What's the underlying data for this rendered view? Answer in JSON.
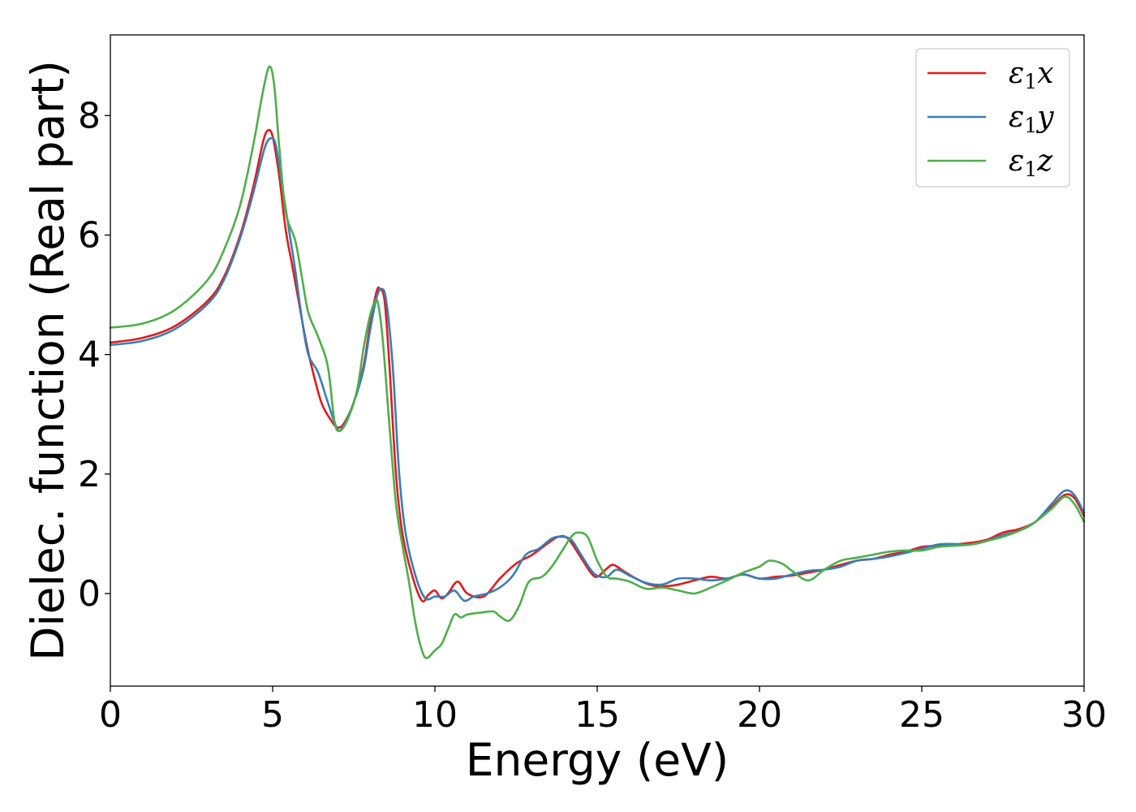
{
  "chart_data": {
    "type": "line",
    "xlabel": "Energy (eV)",
    "ylabel": "Dielec. function (Real part)",
    "xlim": [
      0,
      30
    ],
    "ylim": [
      -1.55,
      9.35
    ],
    "xticks": [
      0,
      5,
      10,
      15,
      20,
      25,
      30
    ],
    "yticks": [
      0,
      2,
      4,
      6,
      8
    ],
    "grid": false,
    "legend_position": "top-right",
    "series": [
      {
        "name": "ε1x",
        "legend_main": "ε",
        "legend_sub": "1",
        "legend_tail": "x",
        "color": "#e41a1c",
        "points": [
          [
            0,
            4.2
          ],
          [
            1,
            4.28
          ],
          [
            2,
            4.48
          ],
          [
            3,
            4.9
          ],
          [
            3.5,
            5.3
          ],
          [
            4,
            6.0
          ],
          [
            4.4,
            6.8
          ],
          [
            4.7,
            7.55
          ],
          [
            4.85,
            7.75
          ],
          [
            5.0,
            7.65
          ],
          [
            5.2,
            7.0
          ],
          [
            5.4,
            6.1
          ],
          [
            5.6,
            5.5
          ],
          [
            5.8,
            4.9
          ],
          [
            6.0,
            4.3
          ],
          [
            6.2,
            3.8
          ],
          [
            6.5,
            3.2
          ],
          [
            6.8,
            2.9
          ],
          [
            7.0,
            2.78
          ],
          [
            7.2,
            2.85
          ],
          [
            7.5,
            3.2
          ],
          [
            7.8,
            3.8
          ],
          [
            8.0,
            4.5
          ],
          [
            8.2,
            5.05
          ],
          [
            8.3,
            5.1
          ],
          [
            8.45,
            4.9
          ],
          [
            8.6,
            3.8
          ],
          [
            8.8,
            2.0
          ],
          [
            9.0,
            1.0
          ],
          [
            9.3,
            0.3
          ],
          [
            9.6,
            -0.12
          ],
          [
            9.8,
            -0.02
          ],
          [
            10.0,
            0.05
          ],
          [
            10.2,
            -0.08
          ],
          [
            10.4,
            0.0
          ],
          [
            10.7,
            0.2
          ],
          [
            11.0,
            0.0
          ],
          [
            11.5,
            -0.05
          ],
          [
            12.0,
            0.25
          ],
          [
            12.5,
            0.5
          ],
          [
            13.0,
            0.65
          ],
          [
            13.5,
            0.85
          ],
          [
            13.8,
            0.95
          ],
          [
            14.1,
            0.92
          ],
          [
            14.5,
            0.6
          ],
          [
            14.8,
            0.35
          ],
          [
            15.0,
            0.28
          ],
          [
            15.3,
            0.42
          ],
          [
            15.5,
            0.48
          ],
          [
            15.8,
            0.38
          ],
          [
            16.2,
            0.25
          ],
          [
            16.6,
            0.15
          ],
          [
            17.0,
            0.12
          ],
          [
            17.5,
            0.15
          ],
          [
            18.0,
            0.22
          ],
          [
            18.5,
            0.28
          ],
          [
            19.0,
            0.25
          ],
          [
            19.5,
            0.32
          ],
          [
            20.0,
            0.25
          ],
          [
            20.5,
            0.28
          ],
          [
            21.0,
            0.3
          ],
          [
            21.5,
            0.35
          ],
          [
            22.0,
            0.4
          ],
          [
            22.5,
            0.48
          ],
          [
            23.0,
            0.55
          ],
          [
            23.5,
            0.58
          ],
          [
            24.0,
            0.65
          ],
          [
            24.5,
            0.7
          ],
          [
            25.0,
            0.78
          ],
          [
            25.5,
            0.8
          ],
          [
            26.0,
            0.82
          ],
          [
            26.5,
            0.85
          ],
          [
            27.0,
            0.9
          ],
          [
            27.5,
            1.02
          ],
          [
            28.0,
            1.08
          ],
          [
            28.5,
            1.2
          ],
          [
            29.0,
            1.45
          ],
          [
            29.4,
            1.65
          ],
          [
            29.7,
            1.6
          ],
          [
            30.0,
            1.3
          ]
        ]
      },
      {
        "name": "ε1y",
        "legend_main": "ε",
        "legend_sub": "1",
        "legend_tail": "y",
        "color": "#377eb8",
        "points": [
          [
            0,
            4.16
          ],
          [
            1,
            4.23
          ],
          [
            2,
            4.43
          ],
          [
            3,
            4.85
          ],
          [
            3.5,
            5.25
          ],
          [
            4,
            5.95
          ],
          [
            4.4,
            6.7
          ],
          [
            4.75,
            7.45
          ],
          [
            4.95,
            7.62
          ],
          [
            5.1,
            7.5
          ],
          [
            5.3,
            6.8
          ],
          [
            5.5,
            6.1
          ],
          [
            5.7,
            5.4
          ],
          [
            5.9,
            4.6
          ],
          [
            6.1,
            4.0
          ],
          [
            6.4,
            3.7
          ],
          [
            6.7,
            3.2
          ],
          [
            7.0,
            2.75
          ],
          [
            7.2,
            2.82
          ],
          [
            7.5,
            3.2
          ],
          [
            7.8,
            3.75
          ],
          [
            8.0,
            4.4
          ],
          [
            8.2,
            4.95
          ],
          [
            8.35,
            5.1
          ],
          [
            8.5,
            4.9
          ],
          [
            8.7,
            3.8
          ],
          [
            8.9,
            2.0
          ],
          [
            9.1,
            1.0
          ],
          [
            9.4,
            0.3
          ],
          [
            9.7,
            -0.08
          ],
          [
            10.0,
            -0.05
          ],
          [
            10.3,
            -0.05
          ],
          [
            10.6,
            0.05
          ],
          [
            10.9,
            -0.12
          ],
          [
            11.2,
            -0.05
          ],
          [
            11.6,
            0.0
          ],
          [
            12.0,
            0.1
          ],
          [
            12.4,
            0.3
          ],
          [
            12.8,
            0.65
          ],
          [
            13.2,
            0.75
          ],
          [
            13.6,
            0.92
          ],
          [
            13.9,
            0.95
          ],
          [
            14.2,
            0.9
          ],
          [
            14.5,
            0.65
          ],
          [
            14.8,
            0.4
          ],
          [
            15.0,
            0.3
          ],
          [
            15.3,
            0.28
          ],
          [
            15.6,
            0.4
          ],
          [
            16.0,
            0.3
          ],
          [
            16.5,
            0.18
          ],
          [
            17.0,
            0.15
          ],
          [
            17.5,
            0.25
          ],
          [
            18.0,
            0.25
          ],
          [
            18.5,
            0.22
          ],
          [
            19.0,
            0.25
          ],
          [
            19.5,
            0.32
          ],
          [
            20.0,
            0.25
          ],
          [
            20.5,
            0.25
          ],
          [
            21.0,
            0.32
          ],
          [
            21.5,
            0.38
          ],
          [
            22.0,
            0.4
          ],
          [
            22.5,
            0.45
          ],
          [
            23.0,
            0.55
          ],
          [
            23.5,
            0.58
          ],
          [
            24.0,
            0.62
          ],
          [
            24.5,
            0.68
          ],
          [
            25.0,
            0.75
          ],
          [
            25.5,
            0.82
          ],
          [
            26.0,
            0.83
          ],
          [
            26.5,
            0.82
          ],
          [
            27.0,
            0.88
          ],
          [
            27.5,
            0.98
          ],
          [
            28.0,
            1.05
          ],
          [
            28.5,
            1.2
          ],
          [
            29.0,
            1.5
          ],
          [
            29.4,
            1.72
          ],
          [
            29.7,
            1.65
          ],
          [
            30.0,
            1.35
          ]
        ]
      },
      {
        "name": "ε1z",
        "legend_main": "ε",
        "legend_sub": "1",
        "legend_tail": "z",
        "color": "#4daf4a",
        "points": [
          [
            0,
            4.45
          ],
          [
            1,
            4.52
          ],
          [
            2,
            4.75
          ],
          [
            3,
            5.25
          ],
          [
            3.5,
            5.75
          ],
          [
            4,
            6.5
          ],
          [
            4.4,
            7.5
          ],
          [
            4.7,
            8.4
          ],
          [
            4.9,
            8.82
          ],
          [
            5.05,
            8.5
          ],
          [
            5.2,
            7.5
          ],
          [
            5.4,
            6.4
          ],
          [
            5.7,
            5.9
          ],
          [
            5.9,
            5.3
          ],
          [
            6.1,
            4.7
          ],
          [
            6.4,
            4.3
          ],
          [
            6.7,
            3.8
          ],
          [
            6.9,
            2.9
          ],
          [
            7.05,
            2.72
          ],
          [
            7.3,
            2.9
          ],
          [
            7.6,
            3.4
          ],
          [
            7.8,
            4.1
          ],
          [
            8.0,
            4.65
          ],
          [
            8.15,
            4.88
          ],
          [
            8.25,
            4.85
          ],
          [
            8.4,
            4.2
          ],
          [
            8.6,
            2.8
          ],
          [
            8.8,
            1.5
          ],
          [
            9.0,
            0.8
          ],
          [
            9.2,
            0.2
          ],
          [
            9.4,
            -0.5
          ],
          [
            9.6,
            -0.95
          ],
          [
            9.75,
            -1.08
          ],
          [
            10.0,
            -0.95
          ],
          [
            10.2,
            -0.85
          ],
          [
            10.4,
            -0.6
          ],
          [
            10.6,
            -0.35
          ],
          [
            10.8,
            -0.4
          ],
          [
            11.0,
            -0.35
          ],
          [
            11.4,
            -0.32
          ],
          [
            11.8,
            -0.3
          ],
          [
            12.0,
            -0.38
          ],
          [
            12.3,
            -0.45
          ],
          [
            12.6,
            -0.2
          ],
          [
            12.9,
            0.2
          ],
          [
            13.3,
            0.28
          ],
          [
            13.6,
            0.45
          ],
          [
            13.9,
            0.7
          ],
          [
            14.2,
            0.95
          ],
          [
            14.4,
            1.02
          ],
          [
            14.7,
            0.95
          ],
          [
            15.0,
            0.55
          ],
          [
            15.3,
            0.28
          ],
          [
            15.6,
            0.25
          ],
          [
            16.0,
            0.2
          ],
          [
            16.5,
            0.08
          ],
          [
            17.0,
            0.1
          ],
          [
            17.5,
            0.05
          ],
          [
            18.0,
            0.0
          ],
          [
            18.5,
            0.1
          ],
          [
            19.0,
            0.22
          ],
          [
            19.5,
            0.35
          ],
          [
            20.0,
            0.45
          ],
          [
            20.3,
            0.55
          ],
          [
            20.7,
            0.5
          ],
          [
            21.0,
            0.38
          ],
          [
            21.5,
            0.22
          ],
          [
            22.0,
            0.4
          ],
          [
            22.5,
            0.55
          ],
          [
            23.0,
            0.6
          ],
          [
            23.5,
            0.65
          ],
          [
            24.0,
            0.7
          ],
          [
            24.5,
            0.72
          ],
          [
            25.0,
            0.72
          ],
          [
            25.5,
            0.78
          ],
          [
            26.0,
            0.8
          ],
          [
            26.5,
            0.82
          ],
          [
            27.0,
            0.88
          ],
          [
            27.5,
            0.95
          ],
          [
            28.0,
            1.05
          ],
          [
            28.5,
            1.2
          ],
          [
            29.0,
            1.42
          ],
          [
            29.4,
            1.62
          ],
          [
            29.7,
            1.5
          ],
          [
            30.0,
            1.2
          ]
        ]
      }
    ]
  }
}
